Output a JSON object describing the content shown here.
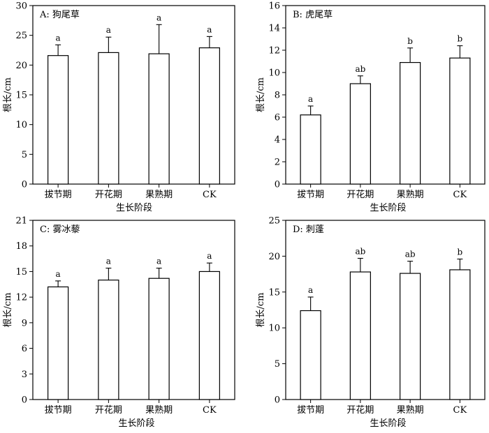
{
  "chart_data": [
    {
      "type": "bar",
      "title": "A: 狗尾草",
      "xlabel": "",
      "ylabel": "根长/cm",
      "ylim": [
        0,
        30
      ],
      "yticks": [
        0,
        5,
        10,
        15,
        20,
        25,
        30
      ],
      "categories": [
        "拔节期",
        "开花期",
        "果熟期",
        "CK"
      ],
      "values": [
        21.6,
        22.1,
        21.9,
        22.9
      ],
      "errors": [
        1.8,
        2.6,
        4.9,
        1.9
      ],
      "significance": [
        "a",
        "a",
        "a",
        "a"
      ]
    },
    {
      "type": "bar",
      "title": "B: 虎尾草",
      "xlabel": "生长阶段",
      "ylabel": "根长/cm",
      "ylim": [
        0,
        16
      ],
      "yticks": [
        0,
        2,
        4,
        6,
        8,
        10,
        12,
        14,
        16
      ],
      "categories": [
        "拔节期",
        "开花期",
        "果熟期",
        "CK"
      ],
      "values": [
        6.2,
        9.0,
        10.9,
        11.3
      ],
      "errors": [
        0.8,
        0.7,
        1.3,
        1.1
      ],
      "significance": [
        "a",
        "ab",
        "b",
        "b"
      ]
    },
    {
      "type": "bar",
      "title": "C: 雾冰藜",
      "xlabel": "生长阶段",
      "ylabel": "根长/cm",
      "ylim": [
        0,
        21
      ],
      "yticks": [
        0,
        3,
        6,
        9,
        12,
        15,
        18,
        21
      ],
      "categories": [
        "拔节期",
        "开花期",
        "果熟期",
        "CK"
      ],
      "values": [
        13.2,
        14.0,
        14.2,
        15.0
      ],
      "errors": [
        0.7,
        1.4,
        1.2,
        1.0
      ],
      "significance": [
        "a",
        "a",
        "a",
        "a"
      ]
    },
    {
      "type": "bar",
      "title": "D: 刺蓬",
      "xlabel": "生长阶段",
      "ylabel": "根长/cm",
      "ylim": [
        0,
        25
      ],
      "yticks": [
        0,
        5,
        10,
        15,
        20,
        25
      ],
      "categories": [
        "拔节期",
        "开花期",
        "果熟期",
        "CK"
      ],
      "values": [
        12.4,
        17.8,
        17.6,
        18.1
      ],
      "errors": [
        1.9,
        1.9,
        1.7,
        1.5
      ],
      "significance": [
        "a",
        "ab",
        "ab",
        "b"
      ]
    }
  ],
  "figure": {
    "shared_xlabel": "生长阶段"
  }
}
